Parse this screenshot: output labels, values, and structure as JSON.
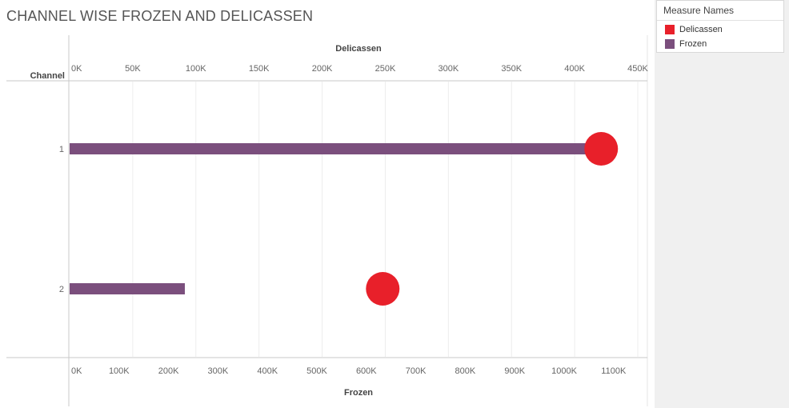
{
  "title": "CHANNEL WISE FROZEN AND DELICASSEN",
  "legend": {
    "title": "Measure Names",
    "items": [
      {
        "label": "Delicassen",
        "color": "#e8202a"
      },
      {
        "label": "Frozen",
        "color": "#7b4f7d"
      }
    ]
  },
  "chart_data": {
    "type": "bar",
    "subtype": "dual-axis bar and circle",
    "row_header": "Channel",
    "categories": [
      "1",
      "2"
    ],
    "x_top": {
      "label": "Delicassen",
      "range": [
        0,
        450000
      ],
      "ticks": [
        0,
        50000,
        100000,
        150000,
        200000,
        250000,
        300000,
        350000,
        400000,
        450000
      ],
      "tick_labels": [
        "0K",
        "50K",
        "100K",
        "150K",
        "200K",
        "250K",
        "300K",
        "350K",
        "400K",
        "450K"
      ]
    },
    "x_bottom": {
      "label": "Frozen",
      "range": [
        0,
        1170000
      ],
      "ticks": [
        0,
        100000,
        200000,
        300000,
        400000,
        500000,
        600000,
        700000,
        800000,
        900000,
        1000000,
        1100000
      ],
      "tick_labels": [
        "0K",
        "100K",
        "200K",
        "300K",
        "400K",
        "500K",
        "600K",
        "700K",
        "800K",
        "900K",
        "1000K",
        "1100K"
      ]
    },
    "series": [
      {
        "name": "Frozen",
        "mark": "bar",
        "axis": "bottom",
        "color": "#7b4f7d",
        "values": [
          1060000,
          233000
        ]
      },
      {
        "name": "Delicassen",
        "mark": "circle",
        "axis": "top",
        "color": "#e8202a",
        "values": [
          421000,
          248000
        ]
      }
    ],
    "grid": true,
    "legend_position": "right"
  }
}
